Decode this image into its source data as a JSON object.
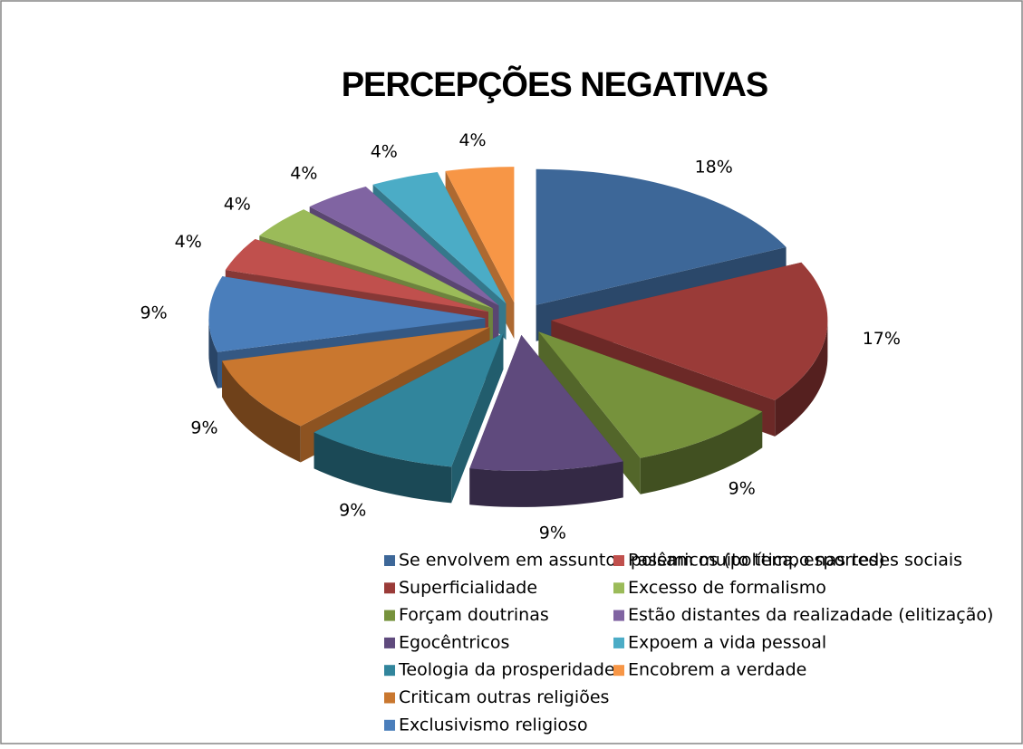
{
  "chart_data": {
    "type": "pie",
    "title": "PERCEPÇÕES NEGATIVAS",
    "categories": [
      "Se envolvem em assuntos polêmicos (política, esportes)",
      "Superficialidade",
      "Forçam doutrinas",
      "Egocêntricos",
      "Teologia da prosperidade",
      "Criticam outras religiões",
      "Exclusivismo religioso",
      "Passam muito tempo nas redes sociais",
      "Excesso de formalismo",
      "Estão distantes da realizadade (elitização)",
      "Expoem a vida pessoal",
      "Encobrem a verdade"
    ],
    "values": [
      18,
      17,
      9,
      9,
      9,
      9,
      9,
      4,
      4,
      4,
      4,
      4
    ],
    "value_labels": [
      "18%",
      "17%",
      "9%",
      "9%",
      "9%",
      "9%",
      "9%",
      "4%",
      "4%",
      "4%",
      "4%",
      "4%"
    ],
    "colors": [
      "#3d6798",
      "#9a3b38",
      "#76923c",
      "#5f4a7d",
      "#31859c",
      "#c9772f",
      "#4a7ebb",
      "#c0504d",
      "#9bbb59",
      "#8064a2",
      "#4bacc6",
      "#f79646"
    ],
    "legend": "bottom"
  }
}
